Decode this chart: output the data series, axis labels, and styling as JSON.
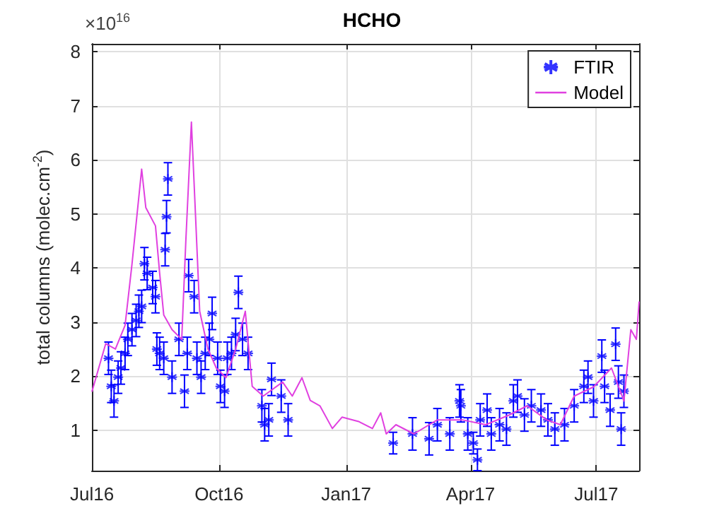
{
  "chart_data": {
    "type": "scatter",
    "title": "HCHO",
    "ylabel": "total columns (molec.cm$^{-2}$)",
    "annotations": [
      "×10$^{16}$"
    ],
    "xlim": [
      "2016-07-01",
      "2017-08-01"
    ],
    "xticks": [
      {
        "value": "2016-07-01",
        "label": "Jul16"
      },
      {
        "value": "2016-10-01",
        "label": "Oct16"
      },
      {
        "value": "2017-01-01",
        "label": "Jan17"
      },
      {
        "value": "2017-04-01",
        "label": "Apr17"
      },
      {
        "value": "2017-07-01",
        "label": "Jul17"
      }
    ],
    "ylim": [
      0.25,
      8.15
    ],
    "yticks": [
      1,
      2,
      3,
      4,
      5,
      6,
      7,
      8
    ],
    "grid": true,
    "legend": "top right",
    "series": [
      {
        "name": "FTIR",
        "marker": "cross",
        "color": "#0000ff",
        "x": [
          "2016-07-13",
          "2016-07-15",
          "2016-07-17",
          "2016-07-20",
          "2016-07-22",
          "2016-07-25",
          "2016-07-27",
          "2016-07-30",
          "2016-08-02",
          "2016-08-04",
          "2016-08-06",
          "2016-08-08",
          "2016-08-10",
          "2016-08-14",
          "2016-08-16",
          "2016-08-17",
          "2016-08-19",
          "2016-08-22",
          "2016-08-23",
          "2016-08-24",
          "2016-08-25",
          "2016-08-28",
          "2016-09-02",
          "2016-09-06",
          "2016-09-08",
          "2016-09-09",
          "2016-09-13",
          "2016-09-15",
          "2016-09-18",
          "2016-09-21",
          "2016-09-24",
          "2016-09-26",
          "2016-09-30",
          "2016-10-02",
          "2016-10-05",
          "2016-10-07",
          "2016-10-10",
          "2016-10-13",
          "2016-10-15",
          "2016-10-18",
          "2016-10-22",
          "2016-11-01",
          "2016-11-03",
          "2016-11-06",
          "2016-11-08",
          "2016-11-15",
          "2016-11-20",
          "2017-02-04",
          "2017-02-18",
          "2017-03-02",
          "2017-03-08",
          "2017-03-17",
          "2017-03-24",
          "2017-03-25",
          "2017-03-30",
          "2017-04-03",
          "2017-04-06",
          "2017-04-08",
          "2017-04-13",
          "2017-04-16",
          "2017-04-22",
          "2017-04-27",
          "2017-05-02",
          "2017-05-05",
          "2017-05-10",
          "2017-05-15",
          "2017-05-22",
          "2017-05-27",
          "2017-06-01",
          "2017-06-08",
          "2017-06-15",
          "2017-06-22",
          "2017-06-25",
          "2017-06-29",
          "2017-07-05",
          "2017-07-07",
          "2017-07-11",
          "2017-07-15",
          "2017-07-17",
          "2017-07-19",
          "2017-07-21"
        ],
        "values": [
          2.33,
          1.81,
          1.54,
          1.98,
          2.15,
          2.42,
          2.68,
          2.86,
          3.03,
          3.2,
          3.29,
          4.08,
          3.9,
          3.64,
          3.47,
          2.5,
          2.42,
          2.33,
          4.34,
          4.95,
          5.65,
          1.98,
          2.68,
          1.72,
          2.42,
          3.86,
          3.47,
          2.33,
          1.98,
          2.42,
          2.68,
          3.16,
          2.33,
          1.81,
          1.72,
          2.33,
          2.42,
          2.77,
          3.55,
          2.68,
          2.42,
          1.45,
          1.1,
          1.19,
          1.94,
          1.63,
          1.19,
          0.76,
          0.93,
          0.84,
          1.1,
          0.93,
          1.54,
          1.45,
          0.93,
          0.76,
          0.45,
          1.19,
          1.37,
          0.93,
          1.1,
          1.02,
          1.54,
          1.63,
          1.28,
          1.45,
          1.37,
          1.19,
          1.02,
          1.1,
          1.45,
          1.81,
          1.98,
          1.54,
          2.37,
          1.81,
          1.37,
          2.59,
          1.89,
          1.02,
          1.72
        ],
        "errors": [
          0.3,
          0.3,
          0.3,
          0.3,
          0.3,
          0.3,
          0.3,
          0.3,
          0.3,
          0.3,
          0.3,
          0.3,
          0.3,
          0.3,
          0.3,
          0.3,
          0.3,
          0.3,
          0.3,
          0.3,
          0.3,
          0.3,
          0.3,
          0.3,
          0.3,
          0.3,
          0.3,
          0.3,
          0.3,
          0.3,
          0.3,
          0.3,
          0.3,
          0.3,
          0.3,
          0.3,
          0.3,
          0.3,
          0.3,
          0.3,
          0.3,
          0.3,
          0.3,
          0.3,
          0.3,
          0.3,
          0.3,
          0.2,
          0.3,
          0.3,
          0.3,
          0.3,
          0.3,
          0.3,
          0.3,
          0.2,
          0.2,
          0.3,
          0.3,
          0.3,
          0.3,
          0.3,
          0.3,
          0.3,
          0.3,
          0.3,
          0.3,
          0.3,
          0.3,
          0.3,
          0.3,
          0.3,
          0.3,
          0.3,
          0.3,
          0.3,
          0.3,
          0.3,
          0.3,
          0.3,
          0.3
        ]
      },
      {
        "name": "Model",
        "type": "line",
        "marker": "none",
        "color": "#e040e0",
        "x": [
          "2016-07-01",
          "2016-07-11",
          "2016-07-18",
          "2016-07-25",
          "2016-07-30",
          "2016-08-06",
          "2016-08-09",
          "2016-08-16",
          "2016-08-19",
          "2016-08-22",
          "2016-08-28",
          "2016-09-04",
          "2016-09-07",
          "2016-09-11",
          "2016-09-14",
          "2016-09-17",
          "2016-09-23",
          "2016-09-29",
          "2016-10-06",
          "2016-10-13",
          "2016-10-20",
          "2016-10-25",
          "2016-11-02",
          "2016-11-16",
          "2016-11-23",
          "2016-11-30",
          "2016-12-06",
          "2016-12-13",
          "2016-12-22",
          "2016-12-29",
          "2017-01-10",
          "2017-01-20",
          "2017-01-26",
          "2017-01-30",
          "2017-02-06",
          "2017-02-19",
          "2017-03-08",
          "2017-03-26",
          "2017-04-12",
          "2017-04-29",
          "2017-05-12",
          "2017-05-26",
          "2017-06-05",
          "2017-06-15",
          "2017-06-29",
          "2017-07-12",
          "2017-07-21",
          "2017-07-26",
          "2017-07-30",
          "2017-08-01"
        ],
        "values": [
          1.71,
          2.6,
          2.5,
          2.94,
          4.07,
          5.83,
          5.12,
          4.78,
          3.91,
          3.13,
          2.86,
          2.68,
          4.52,
          6.7,
          4.96,
          3.2,
          2.5,
          2.15,
          1.97,
          2.5,
          3.2,
          1.81,
          1.63,
          1.89,
          1.63,
          1.97,
          1.55,
          1.45,
          1.03,
          1.24,
          1.16,
          1.03,
          1.32,
          0.93,
          1.1,
          0.93,
          1.19,
          1.19,
          1.1,
          1.28,
          1.45,
          1.19,
          1.1,
          1.63,
          1.8,
          2.15,
          1.54,
          2.86,
          2.68,
          3.38
        ]
      }
    ]
  }
}
